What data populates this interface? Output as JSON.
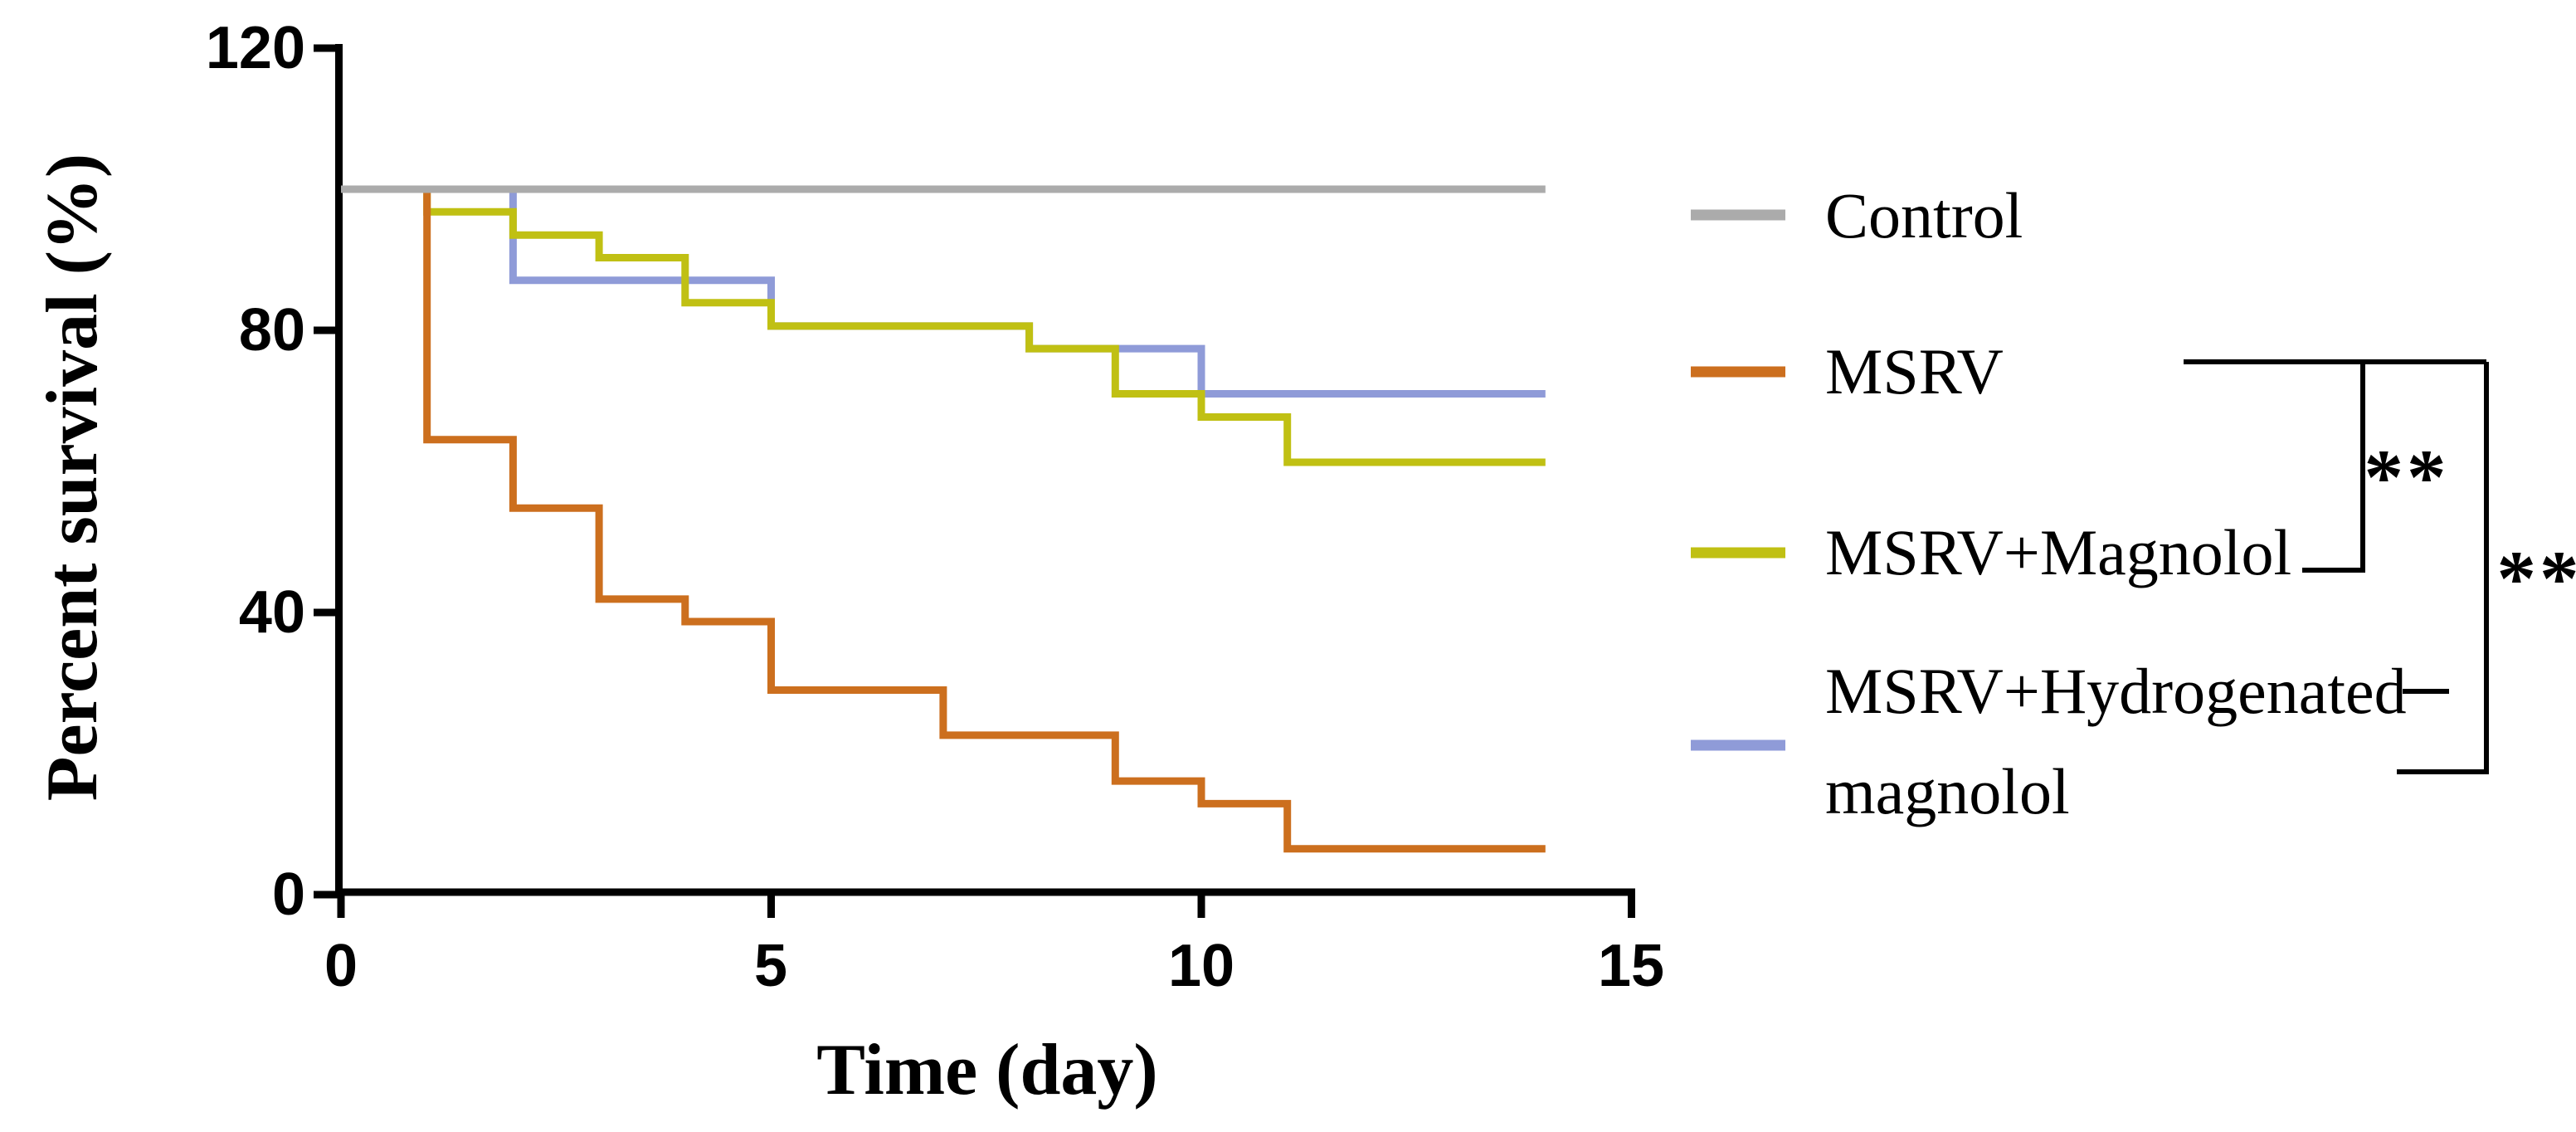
{
  "chart_data": {
    "type": "line",
    "subtype": "kaplan-meier-step-survival",
    "title": "",
    "xlabel": "Time (day)",
    "ylabel": "Percent survival (%)",
    "xlim": [
      0,
      15
    ],
    "ylim": [
      0,
      120
    ],
    "grid": false,
    "legend_position": "right-outside",
    "x_ticks": [
      {
        "value": 0,
        "label": "0"
      },
      {
        "value": 5,
        "label": "5"
      },
      {
        "value": 10,
        "label": "10"
      },
      {
        "value": 15,
        "label": "15"
      }
    ],
    "y_ticks": [
      {
        "value": 120,
        "label": "120"
      },
      {
        "value": 80,
        "label": "80"
      },
      {
        "value": 40,
        "label": "40"
      },
      {
        "value": 0,
        "label": "0"
      }
    ],
    "series": [
      {
        "name": "Control",
        "color": "#ABABAB",
        "final_percent": 100,
        "points": [
          [
            0,
            100
          ],
          [
            14,
            100
          ]
        ]
      },
      {
        "name": "MSRV",
        "color": "#CC6F1E",
        "final_percent": 6.5,
        "points": [
          [
            0,
            100
          ],
          [
            1,
            100
          ],
          [
            1,
            64.5
          ],
          [
            2,
            64.5
          ],
          [
            2,
            54.8
          ],
          [
            3,
            54.8
          ],
          [
            3,
            41.9
          ],
          [
            4,
            41.9
          ],
          [
            4,
            38.7
          ],
          [
            5,
            38.7
          ],
          [
            5,
            29.0
          ],
          [
            7,
            29.0
          ],
          [
            7,
            22.6
          ],
          [
            9,
            22.6
          ],
          [
            9,
            16.1
          ],
          [
            10,
            16.1
          ],
          [
            10,
            12.9
          ],
          [
            11,
            12.9
          ],
          [
            11,
            6.5
          ],
          [
            14,
            6.5
          ]
        ]
      },
      {
        "name": "MSRV+Magnolol",
        "color": "#C0C013",
        "final_percent": 61.3,
        "points": [
          [
            0,
            100
          ],
          [
            1,
            100
          ],
          [
            1,
            96.8
          ],
          [
            2,
            96.8
          ],
          [
            2,
            93.5
          ],
          [
            3,
            93.5
          ],
          [
            3,
            90.3
          ],
          [
            4,
            90.3
          ],
          [
            4,
            83.9
          ],
          [
            5,
            83.9
          ],
          [
            5,
            80.6
          ],
          [
            8,
            80.6
          ],
          [
            8,
            77.4
          ],
          [
            9,
            77.4
          ],
          [
            9,
            71.0
          ],
          [
            10,
            71.0
          ],
          [
            10,
            67.7
          ],
          [
            11,
            67.7
          ],
          [
            11,
            61.3
          ],
          [
            14,
            61.3
          ]
        ]
      },
      {
        "name": "MSRV+Hydrogenated magnolol",
        "color": "#8F9BD8",
        "final_percent": 71.0,
        "points": [
          [
            0,
            100
          ],
          [
            2,
            100
          ],
          [
            2,
            87.1
          ],
          [
            5,
            87.1
          ],
          [
            5,
            80.6
          ],
          [
            8,
            80.6
          ],
          [
            8,
            77.4
          ],
          [
            10,
            77.4
          ],
          [
            10,
            71.0
          ],
          [
            14,
            71.0
          ]
        ]
      }
    ],
    "annotations": [
      {
        "type": "significance-bracket",
        "compares": [
          "MSRV",
          "MSRV+Magnolol"
        ],
        "label": "**"
      },
      {
        "type": "significance-bracket",
        "compares": [
          "MSRV",
          "MSRV+Hydrogenated magnolol"
        ],
        "label": "**"
      }
    ]
  },
  "legend": {
    "items": [
      {
        "label": "Control",
        "color": "#ABABAB"
      },
      {
        "label": "MSRV",
        "color": "#CC6F1E"
      },
      {
        "label": "MSRV+Magnolol",
        "color": "#C0C013"
      },
      {
        "label": "MSRV+Hydrogenated magnolol",
        "color": "#8F9BD8"
      }
    ]
  }
}
